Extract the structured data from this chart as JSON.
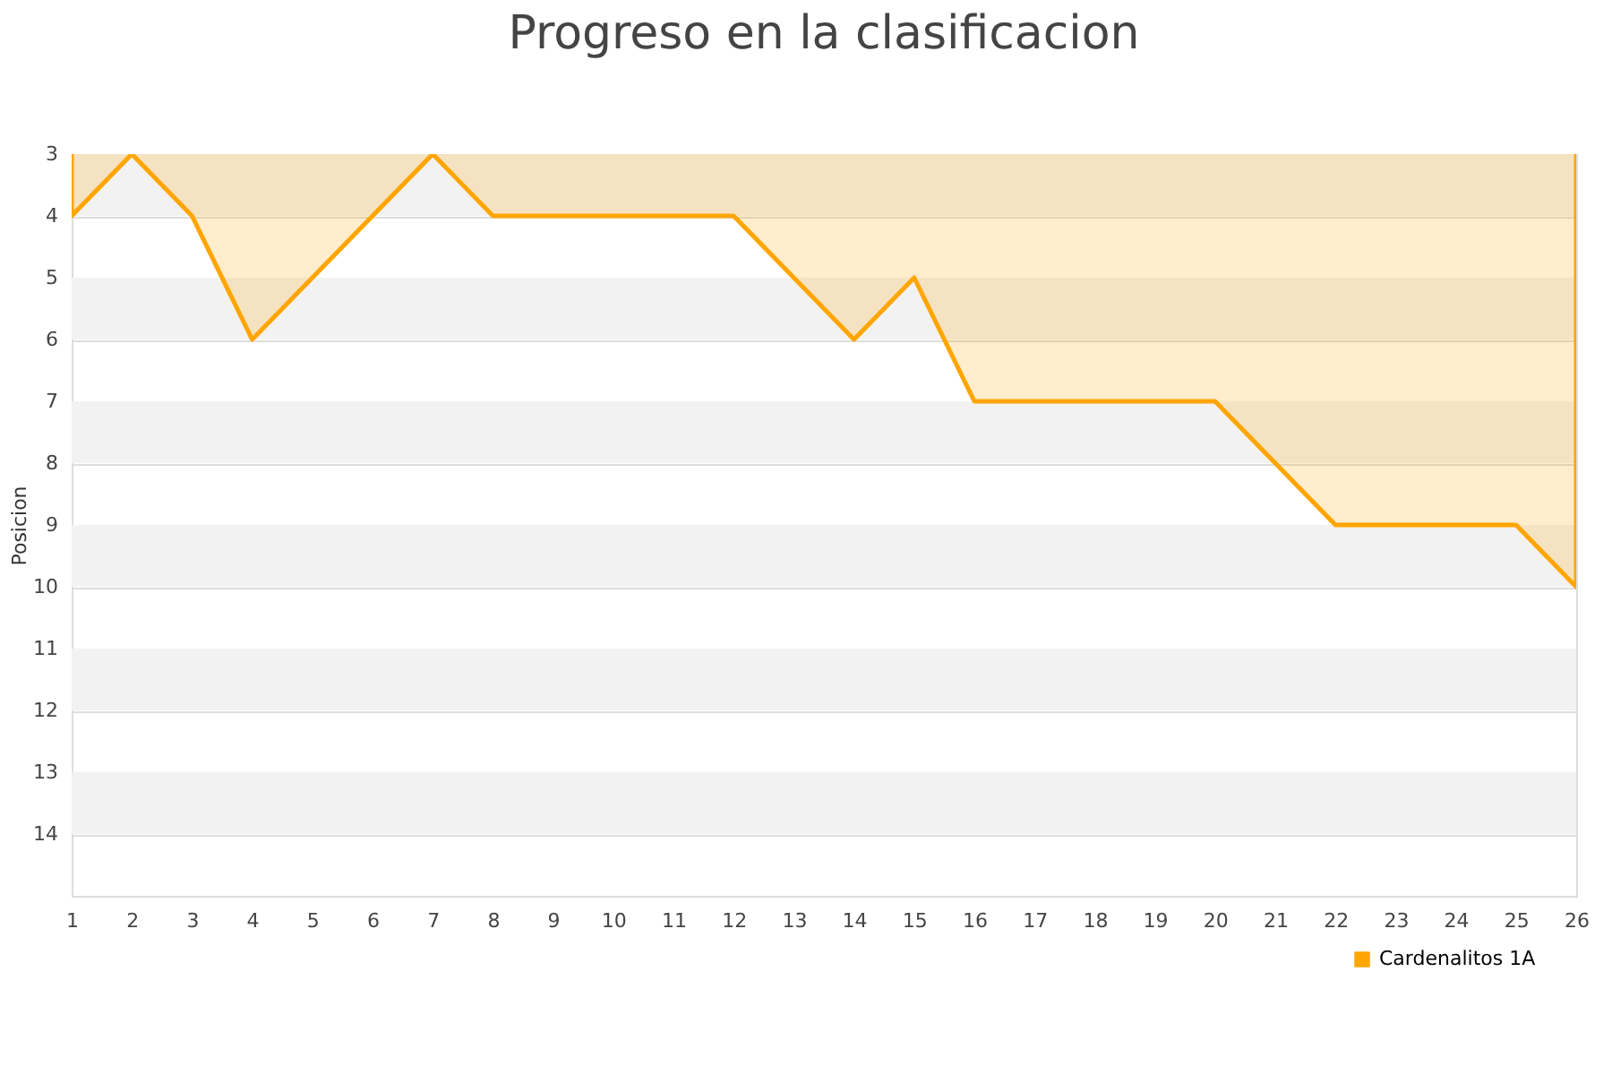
{
  "chart_data": {
    "type": "area",
    "title": "Progreso en la clasificacion",
    "ylabel": "Posicion",
    "x": [
      1,
      2,
      3,
      4,
      5,
      6,
      7,
      8,
      9,
      10,
      11,
      12,
      13,
      14,
      15,
      16,
      17,
      18,
      19,
      20,
      21,
      22,
      23,
      24,
      25,
      26
    ],
    "series": [
      {
        "name": "Cardenalitos 1A",
        "color": "#ffa500",
        "values": [
          4,
          3,
          4,
          6,
          5,
          4,
          3,
          4,
          4,
          4,
          4,
          4,
          5,
          6,
          5,
          7,
          7,
          7,
          7,
          7,
          8,
          9,
          9,
          9,
          9,
          10
        ]
      }
    ],
    "xlim": [
      1,
      26
    ],
    "xticks": [
      1,
      2,
      3,
      4,
      5,
      6,
      7,
      8,
      9,
      10,
      11,
      12,
      13,
      14,
      15,
      16,
      17,
      18,
      19,
      20,
      21,
      22,
      23,
      24,
      25,
      26
    ],
    "ylim": [
      15,
      3
    ],
    "yticks": [
      3,
      4,
      5,
      6,
      7,
      8,
      9,
      10,
      11,
      12,
      13,
      14
    ],
    "bands": [
      {
        "axis": "y",
        "from": 3,
        "to": 4,
        "color": "#f2f2f2"
      },
      {
        "axis": "y",
        "from": 5,
        "to": 6,
        "color": "#f2f2f2"
      },
      {
        "axis": "y",
        "from": 7,
        "to": 8,
        "color": "#f2f2f2"
      },
      {
        "axis": "y",
        "from": 9,
        "to": 10,
        "color": "#f2f2f2"
      },
      {
        "axis": "y",
        "from": 11,
        "to": 12,
        "color": "#f2f2f2"
      },
      {
        "axis": "y",
        "from": 13,
        "to": 14,
        "color": "#f2f2f2"
      }
    ],
    "grid": "y",
    "legend": "bottom right"
  }
}
